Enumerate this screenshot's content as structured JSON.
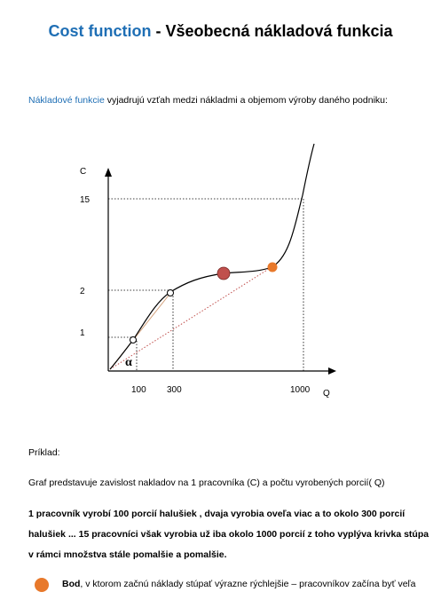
{
  "title": {
    "en": "Cost function",
    "sep": " - ",
    "sk": "Všeobecná nákladová funkcia"
  },
  "intro": {
    "highlight": "Nákladové funkcie",
    "rest": " vyjadrujú vzťah medzi nákladmi a objemom výroby daného podniku:"
  },
  "chart_data": {
    "type": "line",
    "xlabel": "Q",
    "ylabel": "C",
    "x_ticks": [
      "100",
      "300",
      "1000"
    ],
    "y_ticks": [
      "1",
      "2",
      "15"
    ],
    "points": [
      {
        "q": 100,
        "c": 1
      },
      {
        "q": 300,
        "c": 2
      },
      {
        "q": 1000,
        "c": 15
      }
    ],
    "angle_label": "α",
    "colors": {
      "curve": "#000000",
      "ray": "#c0504d",
      "inflection": "#c0504d",
      "threshold": "#e8792b"
    }
  },
  "example": {
    "heading": "Príklad:",
    "line1": "Graf predstavuje zavislost nakladov na   1 pracovníka (C) a počtu vyrobených porcií( Q)",
    "bold1": "1 pracovník vyrobí 100 porcií halušiek , dvaja vyrobia oveľa viac  a to okolo 300 porcií",
    "bold2": "halušiek ... 15 pracovníci však vyrobia už iba okolo 1000 porcií z toho vyplýva krivka stúpa",
    "bold3": "v rámci množstva stále pomalšie a pomalšie."
  },
  "bullet": {
    "bold": "Bod",
    "rest": ", v ktorom začnú náklady stúpať výrazne rýchlejšie – pracovníkov začína byť veľa"
  }
}
